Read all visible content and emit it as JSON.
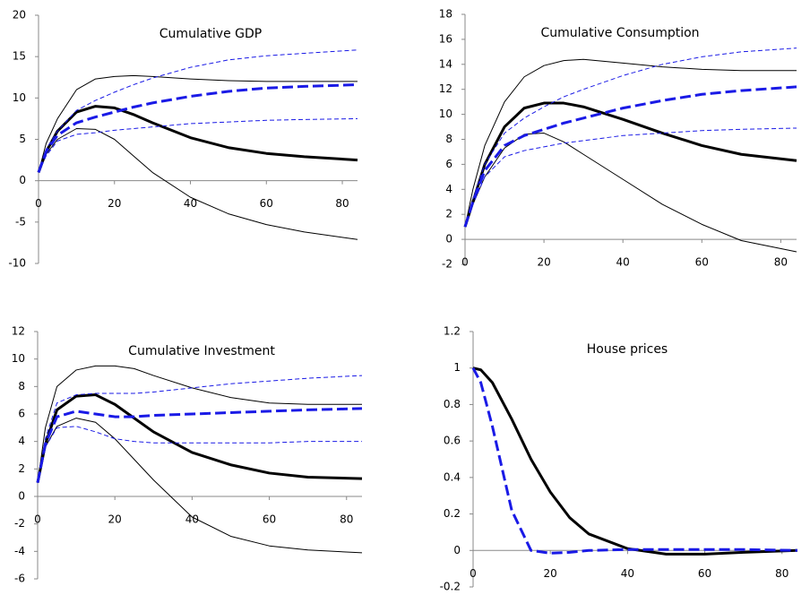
{
  "chart_data": [
    {
      "type": "line",
      "title": "Cumulative GDP",
      "x": [
        0,
        2,
        5,
        10,
        15,
        20,
        25,
        30,
        40,
        50,
        60,
        70,
        84
      ],
      "series": [
        {
          "color": "#000000",
          "width": 3,
          "dash": false,
          "values": [
            1,
            3.5,
            6,
            8.3,
            9,
            8.8,
            8,
            7,
            5.2,
            4,
            3.3,
            2.9,
            2.5
          ]
        },
        {
          "color": "#000000",
          "width": 1,
          "dash": false,
          "values": [
            1,
            4.5,
            7.5,
            11,
            12.3,
            12.6,
            12.7,
            12.6,
            12.3,
            12.1,
            12,
            12,
            12
          ]
        },
        {
          "color": "#000000",
          "width": 1,
          "dash": false,
          "values": [
            1,
            3.2,
            5,
            6.3,
            6.2,
            5,
            3,
            1,
            -2,
            -4,
            -5.3,
            -6.2,
            -7.1
          ]
        },
        {
          "color": "#1a1ae6",
          "width": 3,
          "dash": true,
          "values": [
            1,
            3.5,
            5.5,
            7,
            7.7,
            8.3,
            8.9,
            9.4,
            10.2,
            10.8,
            11.2,
            11.4,
            11.6
          ]
        },
        {
          "color": "#1a1ae6",
          "width": 1,
          "dash": true,
          "values": [
            1,
            3.8,
            6,
            8.5,
            9.7,
            10.7,
            11.6,
            12.4,
            13.7,
            14.6,
            15.1,
            15.4,
            15.8
          ]
        },
        {
          "color": "#1a1ae6",
          "width": 1,
          "dash": true,
          "values": [
            1,
            3,
            4.8,
            5.6,
            5.8,
            6.1,
            6.3,
            6.5,
            6.9,
            7.1,
            7.3,
            7.4,
            7.5
          ]
        }
      ],
      "xlim": [
        0,
        84
      ],
      "xticks": [
        0,
        20,
        40,
        60,
        80
      ],
      "ylim": [
        -10,
        20
      ],
      "yticks": [
        -10,
        -5,
        0,
        5,
        10,
        15,
        20
      ]
    },
    {
      "type": "line",
      "title": "Cumulative Consumption",
      "x": [
        0,
        2,
        5,
        10,
        15,
        20,
        25,
        30,
        40,
        50,
        60,
        70,
        84
      ],
      "series": [
        {
          "color": "#000000",
          "width": 3,
          "dash": false,
          "values": [
            1,
            3,
            6,
            9,
            10.5,
            10.9,
            10.9,
            10.6,
            9.6,
            8.5,
            7.5,
            6.8,
            6.3
          ]
        },
        {
          "color": "#000000",
          "width": 1,
          "dash": false,
          "values": [
            1,
            4,
            7.5,
            11,
            13,
            13.9,
            14.3,
            14.4,
            14.1,
            13.8,
            13.6,
            13.5,
            13.5
          ]
        },
        {
          "color": "#000000",
          "width": 1,
          "dash": false,
          "values": [
            1,
            2.8,
            5,
            7.3,
            8.4,
            8.5,
            7.8,
            6.8,
            4.8,
            2.8,
            1.2,
            -0.1,
            -1
          ]
        },
        {
          "color": "#1a1ae6",
          "width": 3,
          "dash": true,
          "values": [
            1,
            3,
            5.5,
            7.5,
            8.3,
            8.8,
            9.3,
            9.7,
            10.5,
            11.1,
            11.6,
            11.9,
            12.2
          ]
        },
        {
          "color": "#1a1ae6",
          "width": 1,
          "dash": true,
          "values": [
            1,
            3.2,
            6,
            8.5,
            9.7,
            10.6,
            11.4,
            12,
            13.1,
            14,
            14.6,
            15,
            15.3
          ]
        },
        {
          "color": "#1a1ae6",
          "width": 1,
          "dash": true,
          "values": [
            1,
            2.8,
            5,
            6.6,
            7.1,
            7.4,
            7.7,
            7.9,
            8.3,
            8.5,
            8.7,
            8.8,
            8.9
          ]
        }
      ],
      "xlim": [
        0,
        84
      ],
      "xticks": [
        0,
        20,
        40,
        60,
        80
      ],
      "ylim": [
        -2,
        18
      ],
      "yticks": [
        -2,
        0,
        2,
        4,
        6,
        8,
        10,
        12,
        14,
        16,
        18
      ]
    },
    {
      "type": "line",
      "title": "Cumulative Investment",
      "x": [
        0,
        2,
        5,
        10,
        15,
        20,
        25,
        30,
        40,
        50,
        60,
        70,
        84
      ],
      "series": [
        {
          "color": "#000000",
          "width": 3,
          "dash": false,
          "values": [
            1,
            3.8,
            6.3,
            7.3,
            7.4,
            6.7,
            5.7,
            4.7,
            3.2,
            2.3,
            1.7,
            1.4,
            1.3
          ]
        },
        {
          "color": "#000000",
          "width": 1,
          "dash": false,
          "values": [
            1,
            5,
            8,
            9.2,
            9.5,
            9.5,
            9.3,
            8.8,
            7.9,
            7.2,
            6.8,
            6.7,
            6.7
          ]
        },
        {
          "color": "#000000",
          "width": 1,
          "dash": false,
          "values": [
            1,
            3.6,
            5.1,
            5.7,
            5.4,
            4.2,
            2.7,
            1.2,
            -1.5,
            -2.9,
            -3.6,
            -3.9,
            -4.1
          ]
        },
        {
          "color": "#1a1ae6",
          "width": 3,
          "dash": true,
          "values": [
            1,
            3.8,
            5.8,
            6.2,
            6,
            5.8,
            5.8,
            5.9,
            6,
            6.1,
            6.2,
            6.3,
            6.4
          ]
        },
        {
          "color": "#1a1ae6",
          "width": 1,
          "dash": true,
          "values": [
            1,
            4.2,
            6.8,
            7.4,
            7.5,
            7.5,
            7.5,
            7.6,
            7.9,
            8.2,
            8.4,
            8.6,
            8.8
          ]
        },
        {
          "color": "#1a1ae6",
          "width": 1,
          "dash": true,
          "values": [
            1,
            3.6,
            5,
            5.1,
            4.7,
            4.2,
            4,
            3.9,
            3.9,
            3.9,
            3.9,
            4,
            4
          ]
        }
      ],
      "xlim": [
        0,
        84
      ],
      "xticks": [
        0,
        20,
        40,
        60,
        80
      ],
      "ylim": [
        -6,
        12
      ],
      "yticks": [
        -6,
        -4,
        -2,
        0,
        2,
        4,
        6,
        8,
        10,
        12
      ]
    },
    {
      "type": "line",
      "title": "House prices",
      "x": [
        0,
        2,
        5,
        10,
        15,
        20,
        25,
        30,
        40,
        50,
        60,
        70,
        84
      ],
      "series": [
        {
          "color": "#000000",
          "width": 3,
          "dash": false,
          "values": [
            1,
            0.99,
            0.92,
            0.72,
            0.5,
            0.32,
            0.18,
            0.09,
            0.01,
            -0.02,
            -0.02,
            -0.01,
            0
          ]
        },
        {
          "color": "#1a1ae6",
          "width": 3,
          "dash": true,
          "values": [
            1,
            0.92,
            0.68,
            0.22,
            0,
            -0.015,
            -0.01,
            0,
            0.005,
            0.005,
            0.005,
            0.005,
            0
          ]
        }
      ],
      "xlim": [
        0,
        84
      ],
      "xticks": [
        0,
        20,
        40,
        60,
        80
      ],
      "ylim": [
        -0.2,
        1.2
      ],
      "yticks": [
        -0.2,
        0,
        0.2,
        0.4,
        0.6,
        0.8,
        1,
        1.2
      ]
    }
  ]
}
